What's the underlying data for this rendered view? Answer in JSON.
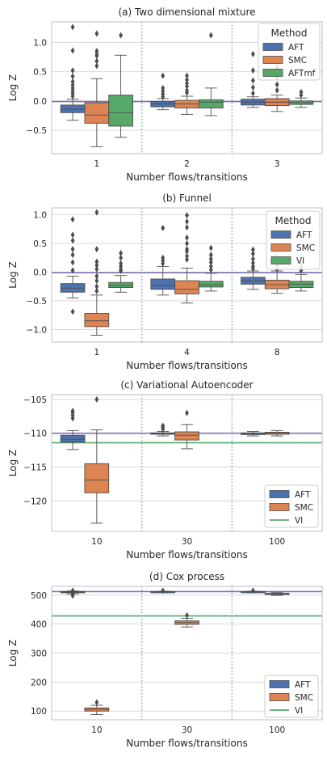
{
  "chart_data": [
    {
      "type": "box",
      "title": "(a) Two dimensional mixture",
      "xlabel": "Number flows/transitions",
      "ylabel": "Log Z",
      "categories": [
        "1",
        "2",
        "3"
      ],
      "yticks": [
        -0.5,
        0.0,
        0.5,
        1.0
      ],
      "ytick_labels": [
        "−0.5",
        "0.0",
        "0.5",
        "1.0"
      ],
      "ylim": [
        -0.9,
        1.35
      ],
      "reference_lines": [
        {
          "y": -0.01,
          "color": "#8172b3"
        }
      ],
      "legend": {
        "title": "Method",
        "position": "top-right",
        "entries": [
          "AFT",
          "SMC",
          "AFTmf"
        ],
        "kinds": [
          "box",
          "box",
          "box"
        ]
      },
      "series": [
        {
          "name": "AFT",
          "color": "#4c72b0",
          "boxes": [
            {
              "q1": -0.2,
              "med": -0.14,
              "q3": -0.07,
              "wlo": -0.33,
              "whi": 0.03,
              "fliers": [
                0.08,
                0.13,
                0.17,
                0.22,
                0.27,
                0.33,
                0.42,
                0.52,
                0.86,
                1.26
              ]
            },
            {
              "q1": -0.1,
              "med": -0.05,
              "q3": -0.01,
              "wlo": -0.15,
              "whi": 0.04,
              "fliers": [
                0.07,
                0.12,
                0.17,
                0.22,
                0.43
              ]
            },
            {
              "q1": -0.07,
              "med": -0.02,
              "q3": 0.03,
              "wlo": -0.11,
              "whi": 0.07,
              "fliers": [
                0.13,
                0.23,
                0.35,
                0.52,
                0.8
              ]
            }
          ]
        },
        {
          "name": "SMC",
          "color": "#dd8452",
          "boxes": [
            {
              "q1": -0.38,
              "med": -0.24,
              "q3": -0.03,
              "wlo": -0.78,
              "whi": 0.38,
              "fliers": [
                0.6,
                0.68,
                0.77,
                0.8,
                0.85,
                1.15
              ]
            },
            {
              "q1": -0.12,
              "med": -0.05,
              "q3": 0.01,
              "wlo": -0.23,
              "whi": 0.08,
              "fliers": [
                0.14,
                0.18,
                0.25,
                0.3,
                0.36,
                0.43
              ]
            },
            {
              "q1": -0.08,
              "med": -0.02,
              "q3": 0.04,
              "wlo": -0.18,
              "whi": 0.1,
              "fliers": [
                0.18,
                0.28,
                0.4,
                0.57,
                0.66
              ]
            }
          ]
        },
        {
          "name": "AFTmf",
          "color": "#55a868",
          "boxes": [
            {
              "q1": -0.43,
              "med": -0.2,
              "q3": 0.1,
              "wlo": -0.62,
              "whi": 0.78,
              "fliers": [
                1.12
              ]
            },
            {
              "q1": -0.12,
              "med": -0.02,
              "q3": 0.02,
              "wlo": -0.25,
              "whi": 0.22,
              "fliers": [
                1.12
              ]
            },
            {
              "q1": -0.06,
              "med": -0.03,
              "q3": 0.0,
              "wlo": -0.11,
              "whi": 0.05,
              "fliers": [
                0.1,
                0.15
              ]
            }
          ]
        }
      ]
    },
    {
      "type": "box",
      "title": "(b) Funnel",
      "xlabel": "Number flows/transitions",
      "ylabel": "Log Z",
      "categories": [
        "1",
        "4",
        "8"
      ],
      "yticks": [
        -1.0,
        -0.5,
        0.0,
        0.5,
        1.0
      ],
      "ytick_labels": [
        "−1.0",
        "−0.5",
        "0.0",
        "0.5",
        "1.0"
      ],
      "ylim": [
        -1.22,
        1.12
      ],
      "reference_lines": [
        {
          "y": -0.01,
          "color": "#8172b3"
        }
      ],
      "legend": {
        "title": "Method",
        "position": "top-right",
        "entries": [
          "AFT",
          "SMC",
          "VI"
        ],
        "kinds": [
          "box",
          "box",
          "box"
        ]
      },
      "series": [
        {
          "name": "AFT",
          "color": "#4c72b0",
          "boxes": [
            {
              "q1": -0.35,
              "med": -0.28,
              "q3": -0.2,
              "wlo": -0.45,
              "whi": -0.07,
              "fliers": [
                -0.69,
                0.03,
                0.17,
                0.3,
                0.4,
                0.55,
                0.65,
                0.92
              ]
            },
            {
              "q1": -0.3,
              "med": -0.23,
              "q3": -0.12,
              "wlo": -0.4,
              "whi": 0.1,
              "fliers": [
                0.15,
                0.2,
                0.25,
                0.77
              ]
            },
            {
              "q1": -0.21,
              "med": -0.15,
              "q3": -0.09,
              "wlo": -0.3,
              "whi": 0.02,
              "fliers": [
                0.06,
                0.1,
                0.16,
                0.23,
                0.32,
                0.39
              ]
            }
          ]
        },
        {
          "name": "SMC",
          "color": "#dd8452",
          "boxes": [
            {
              "q1": -0.95,
              "med": -0.85,
              "q3": -0.72,
              "wlo": -1.1,
              "whi": -0.4,
              "fliers": [
                -0.33,
                -0.25,
                -0.15,
                -0.07,
                0.05,
                0.12,
                0.18,
                0.4,
                1.04
              ]
            },
            {
              "q1": -0.38,
              "med": -0.3,
              "q3": -0.15,
              "wlo": -0.54,
              "whi": 0.07,
              "fliers": [
                0.22,
                0.28,
                0.36,
                0.4,
                0.5,
                0.6,
                0.78,
                0.88,
                0.99
              ]
            },
            {
              "q1": -0.29,
              "med": -0.22,
              "q3": -0.14,
              "wlo": -0.37,
              "whi": 0.02,
              "fliers": [
                0.05,
                0.12,
                0.19,
                0.23,
                0.26
              ]
            }
          ]
        },
        {
          "name": "VI",
          "color": "#55a868",
          "boxes": [
            {
              "q1": -0.27,
              "med": -0.23,
              "q3": -0.18,
              "wlo": -0.35,
              "whi": -0.06,
              "fliers": [
                0.02,
                0.05,
                0.1,
                0.15,
                0.25,
                0.33
              ]
            },
            {
              "q1": -0.26,
              "med": -0.22,
              "q3": -0.16,
              "wlo": -0.33,
              "whi": -0.02,
              "fliers": [
                0.04,
                0.1,
                0.17,
                0.23,
                0.3,
                0.42
              ]
            },
            {
              "q1": -0.27,
              "med": -0.21,
              "q3": -0.16,
              "wlo": -0.33,
              "whi": -0.04,
              "fliers": [
                0.03,
                0.1
              ]
            }
          ]
        }
      ]
    },
    {
      "type": "box",
      "title": "(c) Variational Autoencoder",
      "xlabel": "Number flows/transitions",
      "ylabel": "Log Z",
      "categories": [
        "10",
        "30",
        "100"
      ],
      "yticks": [
        -120,
        -115,
        -110,
        -105
      ],
      "ytick_labels": [
        "−120",
        "−115",
        "−110",
        "−105"
      ],
      "ylim": [
        -124.5,
        -104.3
      ],
      "reference_lines": [
        {
          "y": -110.0,
          "color": "#8172b3"
        },
        {
          "y": -111.4,
          "color": "#55a868"
        }
      ],
      "legend": {
        "title": "",
        "position": "bottom-right",
        "entries": [
          "AFT",
          "SMC",
          "VI"
        ],
        "kinds": [
          "box",
          "box",
          "line"
        ]
      },
      "series": [
        {
          "name": "AFT",
          "color": "#4c72b0",
          "boxes": [
            {
              "q1": -111.3,
              "med": -110.9,
              "q3": -110.3,
              "wlo": -112.4,
              "whi": -109.6,
              "fliers": [
                -107.8,
                -107.4,
                -107.0,
                -106.7
              ]
            },
            {
              "q1": -110.15,
              "med": -110.05,
              "q3": -109.95,
              "wlo": -110.4,
              "whi": -109.75,
              "fliers": [
                -109.4,
                -109.1,
                -108.9
              ]
            },
            {
              "q1": -110.2,
              "med": -110.05,
              "q3": -109.95,
              "wlo": -110.4,
              "whi": -109.75,
              "fliers": []
            }
          ]
        },
        {
          "name": "SMC",
          "color": "#dd8452",
          "boxes": [
            {
              "q1": -118.8,
              "med": -116.9,
              "q3": -114.5,
              "wlo": -123.3,
              "whi": -109.5,
              "fliers": [
                -105.0
              ]
            },
            {
              "q1": -111.0,
              "med": -110.3,
              "q3": -109.8,
              "wlo": -112.3,
              "whi": -108.7,
              "fliers": [
                -107.0
              ]
            },
            {
              "q1": -110.15,
              "med": -110.0,
              "q3": -109.85,
              "wlo": -110.4,
              "whi": -109.6,
              "fliers": []
            }
          ]
        }
      ]
    },
    {
      "type": "box",
      "title": "(d) Cox process",
      "xlabel": "Number flows/transitions",
      "ylabel": "Log Z",
      "categories": [
        "10",
        "30",
        "100"
      ],
      "yticks": [
        100,
        200,
        300,
        400,
        500
      ],
      "ytick_labels": [
        "100",
        "200",
        "300",
        "400",
        "500"
      ],
      "ylim": [
        70,
        530
      ],
      "reference_lines": [
        {
          "y": 512,
          "color": "#8172b3"
        },
        {
          "y": 428,
          "color": "#55a868"
        }
      ],
      "legend": {
        "title": "",
        "position": "bottom-right",
        "entries": [
          "AFT",
          "SMC",
          "VI"
        ],
        "kinds": [
          "box",
          "box",
          "line"
        ]
      },
      "series": [
        {
          "name": "AFT",
          "color": "#4c72b0",
          "boxes": [
            {
              "q1": 508,
              "med": 510,
              "q3": 512,
              "wlo": 504,
              "whi": 514,
              "fliers": [
                498,
                503,
                515
              ]
            },
            {
              "q1": 510,
              "med": 511,
              "q3": 512,
              "wlo": 508,
              "whi": 513,
              "fliers": [
                515
              ]
            },
            {
              "q1": 510,
              "med": 511,
              "q3": 512,
              "wlo": 508,
              "whi": 513,
              "fliers": [
                515
              ]
            }
          ]
        },
        {
          "name": "SMC",
          "color": "#dd8452",
          "boxes": [
            {
              "q1": 100,
              "med": 106,
              "q3": 111,
              "wlo": 88,
              "whi": 120,
              "fliers": [
                130
              ]
            },
            {
              "q1": 399,
              "med": 405,
              "q3": 411,
              "wlo": 390,
              "whi": 420,
              "fliers": [
                430
              ]
            },
            {
              "q1": 502,
              "med": 504,
              "q3": 506,
              "wlo": 499,
              "whi": 508,
              "fliers": []
            }
          ]
        }
      ]
    }
  ]
}
